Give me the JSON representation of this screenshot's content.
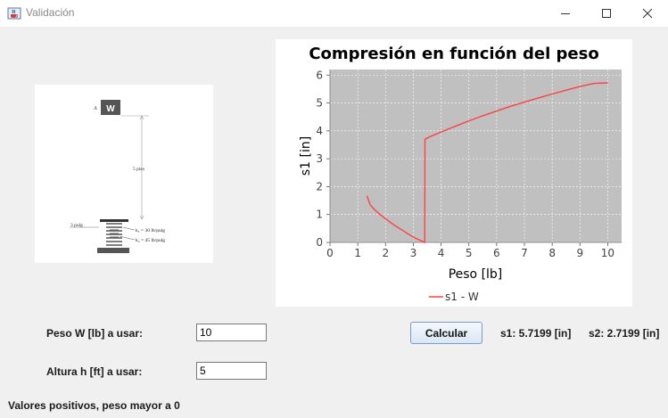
{
  "window": {
    "title": "Validación",
    "app_icon": "java-cup-icon",
    "controls": [
      "minimize-icon",
      "maximize-icon",
      "close-icon"
    ]
  },
  "diagram": {
    "point_label": "A",
    "weight_label": "W",
    "height_label": "5 pies",
    "gap_label": "3 pulg",
    "k1_label": "k₁ = 30 lb/pulg",
    "k2_label": "k₂ = 45 lb/pulg"
  },
  "chart_data": {
    "type": "line",
    "title": "Compresión en función del peso",
    "xlabel": "Peso [lb]",
    "ylabel": "s1 [in]",
    "xlim": [
      0,
      10.5
    ],
    "ylim": [
      0,
      6.2
    ],
    "xticks": [
      "0",
      "1",
      "2",
      "3",
      "4",
      "5",
      "6",
      "7",
      "8",
      "9",
      "10"
    ],
    "yticks": [
      "0",
      "1",
      "2",
      "3",
      "4",
      "5",
      "6"
    ],
    "grid": true,
    "legend": "bottom",
    "series": [
      {
        "name": "s1 - W",
        "color": "#ff4040",
        "x": [
          1.33,
          1.45,
          1.6,
          1.8,
          2.0,
          2.3,
          2.6,
          2.9,
          3.1,
          3.3,
          3.41,
          3.42,
          3.6,
          4.0,
          4.5,
          5.0,
          5.5,
          6.0,
          6.5,
          7.0,
          7.5,
          8.0,
          8.5,
          9.0,
          9.5,
          10.0
        ],
        "y": [
          1.67,
          1.35,
          1.18,
          1.0,
          0.85,
          0.63,
          0.44,
          0.25,
          0.14,
          0.05,
          0.0,
          3.7,
          3.79,
          3.96,
          4.16,
          4.36,
          4.54,
          4.71,
          4.88,
          5.03,
          5.18,
          5.32,
          5.46,
          5.59,
          5.7,
          5.72
        ]
      }
    ]
  },
  "form": {
    "weight_label": "Peso W [lb] a usar:",
    "weight_value": "10",
    "height_label": "Altura h [ft] a usar:",
    "height_value": "5",
    "note": "Valores positivos, peso mayor a 0",
    "calculate_label": "Calcular"
  },
  "results": {
    "s1": "s1: 5.7199 [in]",
    "s2": "s2: 2.7199 [in]"
  }
}
